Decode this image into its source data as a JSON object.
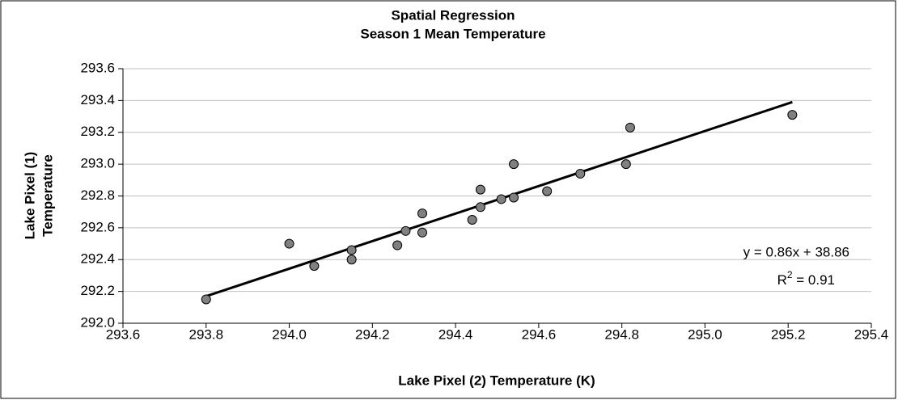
{
  "chart_data": {
    "type": "scatter",
    "title": "Spatial Regression",
    "subtitle": "Season 1 Mean Temperature",
    "xlabel": "Lake Pixel (2) Temperature (K)",
    "ylabel": [
      "Lake Pixel (1)",
      "Temperature"
    ],
    "xlim": [
      293.6,
      295.4
    ],
    "ylim": [
      292.0,
      293.6
    ],
    "xticks": [
      293.6,
      293.8,
      {
        "value": 294,
        "label": "294.0"
      },
      294.2,
      294.4,
      294.6,
      294.8,
      {
        "value": 295,
        "label": "295.0"
      },
      295.2,
      295.4
    ],
    "yticks": [
      {
        "value": 292,
        "label": "292.0"
      },
      292.2,
      292.4,
      292.6,
      292.8,
      {
        "value": 293,
        "label": "293.0"
      },
      293.2,
      293.4,
      293.6
    ],
    "grid": true,
    "series": [
      {
        "color": "#808080",
        "x": [
          293.8,
          294.0,
          294.06,
          294.15,
          294.15,
          294.26,
          294.28,
          294.32,
          294.32,
          294.44,
          294.46,
          294.46,
          294.51,
          294.54,
          294.54,
          294.62,
          294.7,
          294.81,
          294.82,
          295.21
        ],
        "y": [
          292.15,
          292.5,
          292.36,
          292.46,
          292.4,
          292.49,
          292.58,
          292.69,
          292.57,
          292.65,
          292.84,
          292.73,
          292.78,
          293.0,
          292.79,
          292.83,
          292.94,
          293.0,
          293.23,
          293.31
        ]
      }
    ],
    "trendline": {
      "color": "#000000",
      "x": [
        293.8,
        295.21
      ],
      "y": [
        292.17,
        293.39
      ]
    },
    "equation": "y = 0.86x + 38.86",
    "r_squared": [
      "R",
      "2",
      " = 0.91"
    ]
  }
}
